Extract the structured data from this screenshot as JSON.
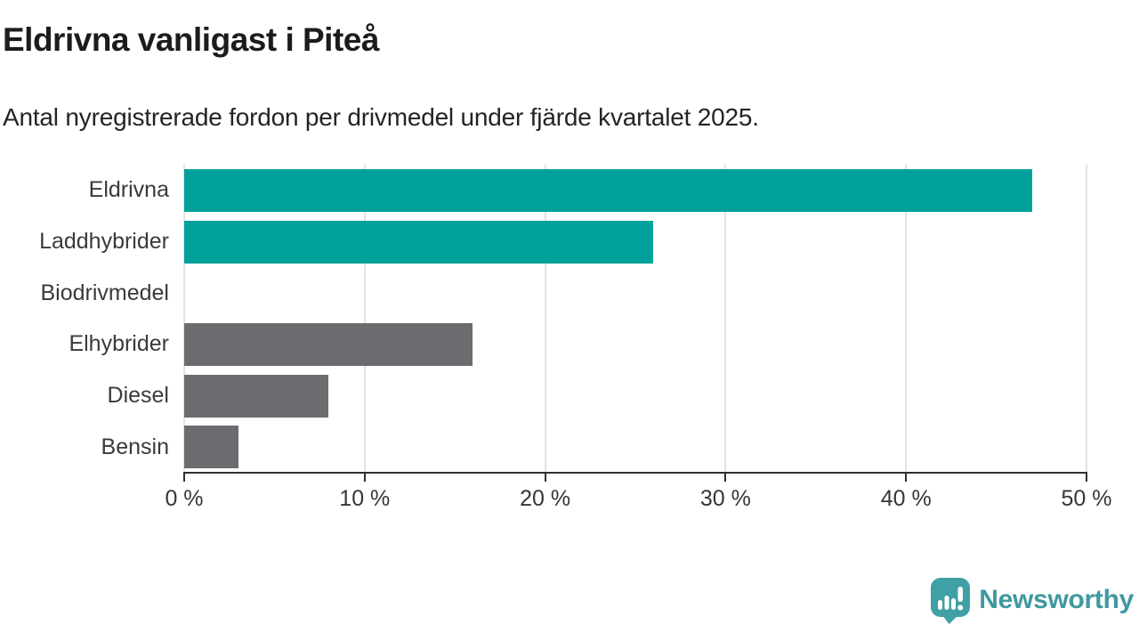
{
  "chart_data": {
    "type": "bar",
    "orientation": "horizontal",
    "title": "Eldrivna vanligast i Piteå",
    "subtitle": "Antal nyregistrerade fordon per drivmedel under fjärde kvartalet 2025.",
    "categories": [
      "Eldrivna",
      "Laddhybrider",
      "Biodrivmedel",
      "Elhybrider",
      "Diesel",
      "Bensin"
    ],
    "values": [
      47,
      26,
      0,
      16,
      8,
      3
    ],
    "unit": "%",
    "bar_colors": [
      "#00a19b",
      "#00a19b",
      "#6c6c70",
      "#6c6c70",
      "#6c6c70",
      "#6c6c70"
    ],
    "xlabel": "",
    "ylabel": "",
    "xlim": [
      0,
      50
    ],
    "x_ticks": [
      0,
      10,
      20,
      30,
      40,
      50
    ],
    "x_tick_labels": [
      "0 %",
      "10 %",
      "20 %",
      "30 %",
      "40 %",
      "50 %"
    ],
    "grid": "vertical-gridlines-on",
    "legend": "none"
  },
  "colors": {
    "accent_teal": "#00a19b",
    "neutral_gray": "#6c6c70",
    "gridline": "#e3e3e3",
    "axis": "#303030",
    "background": "#ffffff",
    "logo_teal": "#3f99a0"
  },
  "logo": {
    "wordmark": "Newsworthy",
    "icon": "newsworthy-speech-bubble-chart-icon"
  }
}
